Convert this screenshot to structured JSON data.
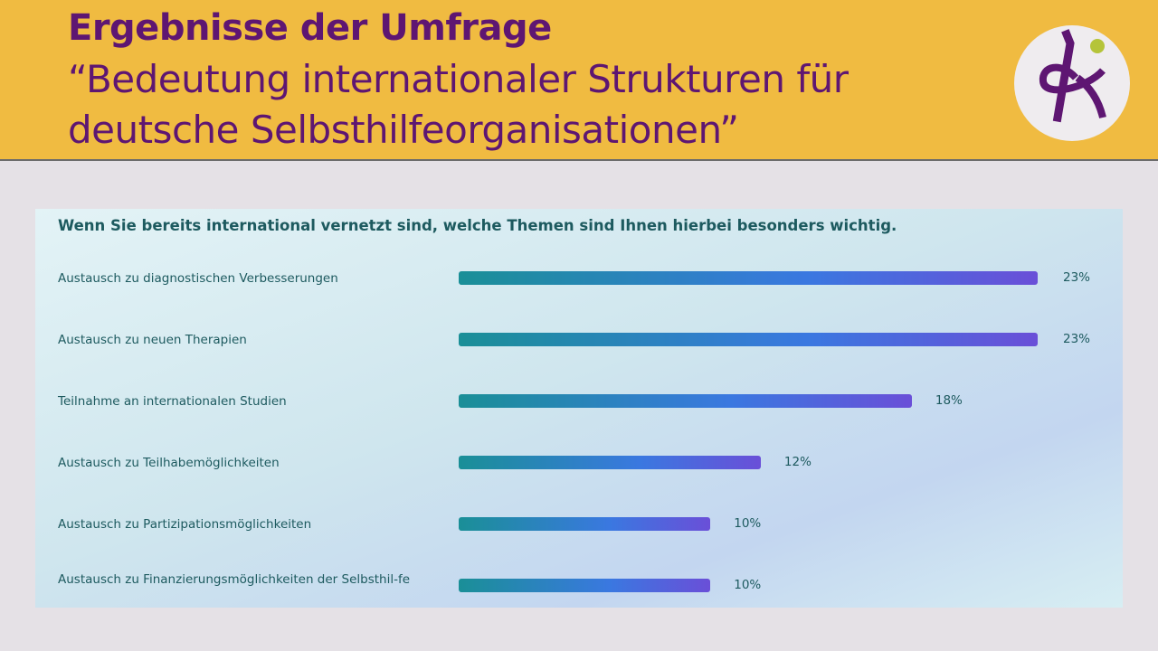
{
  "header": {
    "title": "Ergebnisse der Umfrage",
    "subtitle": "“Bedeutung internationaler Strukturen für deutsche Selbsthilfeorganisationen”"
  },
  "colors": {
    "header_bg": "#f0bb41",
    "title": "#5e1672",
    "bar_start": "#1a8f97",
    "bar_end": "#6a4fd8"
  },
  "chart_data": {
    "type": "bar",
    "title": "Wenn Sie bereits international vernetzt sind, welche Themen sind Ihnen hierbei besonders wichtig.",
    "categories": [
      "Austausch zu diagnostischen Verbesserungen",
      "Austausch zu neuen Therapien",
      "Teilnahme an internationalen Studien",
      "Austausch zu Teilhabemöglichkeiten",
      "Austausch zu Partizipationsmöglichkeiten",
      "Austausch zu Finanzierungsmöglichkeiten der Selbsthil-fe"
    ],
    "values": [
      23,
      23,
      18,
      12,
      10,
      10
    ],
    "labels": [
      "23%",
      "23%",
      "18%",
      "12%",
      "10%",
      "10%"
    ],
    "orientation": "horizontal",
    "unit": "%"
  }
}
